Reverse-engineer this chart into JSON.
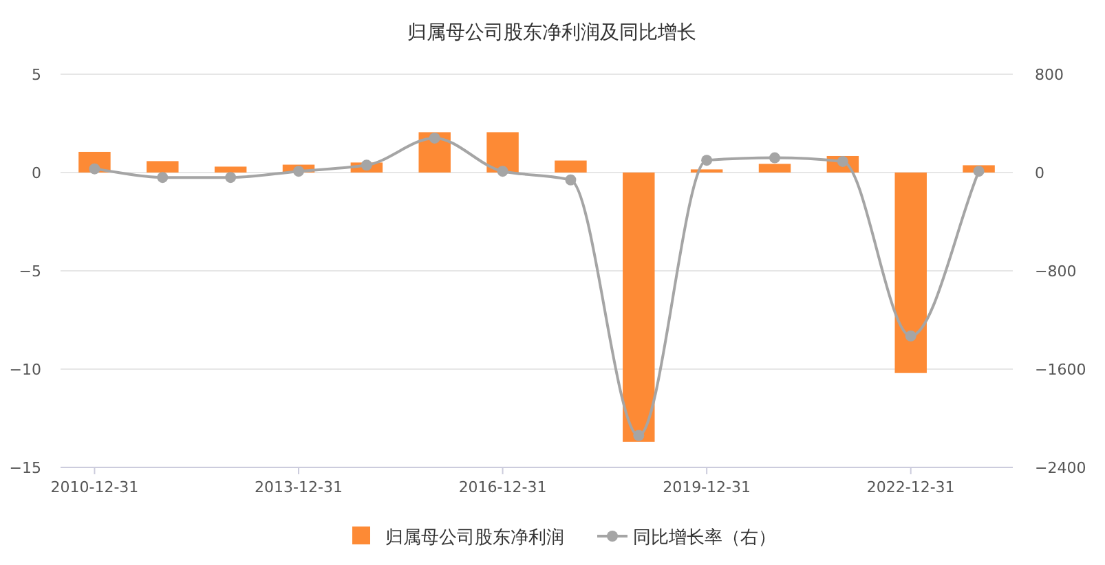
{
  "chart_data": {
    "type": "bar",
    "title": "归属母公司股东净利润及同比增长",
    "categories": [
      "2010-12-31",
      null,
      null,
      "2013-12-31",
      null,
      null,
      "2016-12-31",
      null,
      null,
      "2019-12-31",
      null,
      null,
      "2022-12-31",
      null
    ],
    "series": [
      {
        "name": "归属母公司股东净利润",
        "color": "#fd8a35",
        "values": [
          1.05,
          0.58,
          0.3,
          0.4,
          0.51,
          2.05,
          2.05,
          0.61,
          -13.7,
          0.16,
          0.44,
          0.84,
          -10.2,
          0.37
        ]
      },
      {
        "name": "同比增长率（右）",
        "type": "line",
        "axis": "y2",
        "color": "#a5a5a5",
        "marker": "circle",
        "values": [
          30,
          -40,
          -40,
          10,
          60,
          280,
          10,
          -60,
          -2140,
          100,
          120,
          90,
          -1330,
          10
        ]
      }
    ],
    "ylim": [
      -15,
      5
    ],
    "yticks": [
      -15,
      -10,
      -5,
      0,
      5
    ],
    "y2lim": [
      -2400,
      800
    ],
    "y2ticks": [
      -2400,
      -1600,
      -800,
      0,
      800
    ],
    "grid": "y",
    "legend": "bottom"
  }
}
